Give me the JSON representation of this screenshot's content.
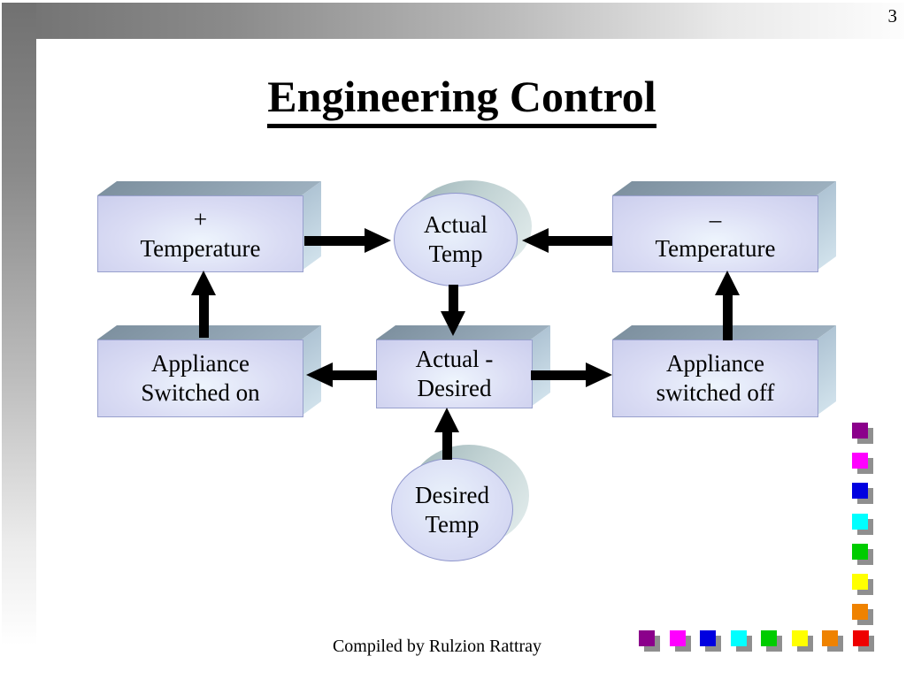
{
  "page": {
    "number": "3",
    "title": "Engineering Control",
    "footer": "Compiled by Rulzion Rattray"
  },
  "diagram": {
    "nodes": {
      "plus_temperature": {
        "shape": "box",
        "line1": "+",
        "line2": "Temperature"
      },
      "actual_temp": {
        "shape": "cylinder",
        "line1": "Actual",
        "line2": "Temp"
      },
      "minus_temperature": {
        "shape": "box",
        "line1": "–",
        "line2": "Temperature"
      },
      "appliance_on": {
        "shape": "box",
        "line1": "Appliance",
        "line2": "Switched on"
      },
      "actual_desired": {
        "shape": "box",
        "line1": "Actual -",
        "line2": "Desired"
      },
      "appliance_off": {
        "shape": "box",
        "line1": "Appliance",
        "line2": "switched off"
      },
      "desired_temp": {
        "shape": "cylinder",
        "line1": "Desired",
        "line2": "Temp"
      }
    },
    "edges": [
      {
        "from": "plus_temperature",
        "to": "actual_temp",
        "direction": "right"
      },
      {
        "from": "minus_temperature",
        "to": "actual_temp",
        "direction": "left"
      },
      {
        "from": "actual_temp",
        "to": "actual_desired",
        "direction": "down"
      },
      {
        "from": "appliance_on",
        "to": "plus_temperature",
        "direction": "up"
      },
      {
        "from": "actual_desired",
        "to": "appliance_on",
        "direction": "left"
      },
      {
        "from": "actual_desired",
        "to": "appliance_off",
        "direction": "right"
      },
      {
        "from": "appliance_off",
        "to": "minus_temperature",
        "direction": "up"
      },
      {
        "from": "desired_temp",
        "to": "actual_desired",
        "direction": "up"
      }
    ]
  },
  "decorations": {
    "shadow_color": "#8f8f8f",
    "vertical_squares": [
      "#8b008b",
      "#ff00ff",
      "#0000e0",
      "#00ffff",
      "#00cc00",
      "#ffff00",
      "#ef8200"
    ],
    "horizontal_squares": [
      "#8b008b",
      "#ff00ff",
      "#0000e0",
      "#00ffff",
      "#00cc00",
      "#ffff00",
      "#ef8200",
      "#ee0000"
    ]
  },
  "colors": {
    "box_front": "#d7daf3",
    "box_top": "#8c9fae",
    "box_side": "#bfd2e0",
    "cylinder_shell": "#b7cccc",
    "arrow": "#000000",
    "frame_gray": "#717171"
  }
}
